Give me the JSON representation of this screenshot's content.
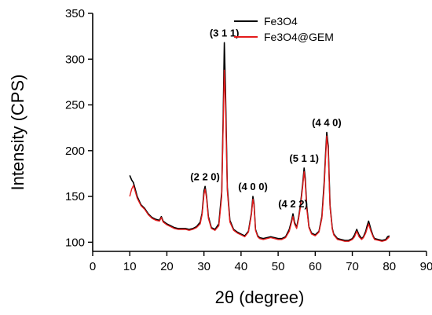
{
  "chart_data": {
    "type": "line",
    "title": "",
    "xlabel": "2θ (degree)",
    "ylabel": "Intensity (CPS)",
    "xlim": [
      0,
      90
    ],
    "ylim": [
      90,
      350
    ],
    "xticks": [
      0,
      10,
      20,
      30,
      40,
      50,
      60,
      70,
      80,
      90
    ],
    "yticks": [
      100,
      150,
      200,
      250,
      300,
      350
    ],
    "grid": false,
    "legend_position": "top-right",
    "series": [
      {
        "name": "Fe3O4",
        "color": "#000000",
        "x": [
          10,
          10.5,
          11,
          12,
          13,
          14,
          15,
          16,
          17,
          18,
          18.5,
          19,
          20,
          21,
          22,
          23,
          24,
          25,
          26,
          27,
          28,
          29,
          29.5,
          30,
          30.3,
          30.7,
          31.2,
          32,
          33,
          34,
          34.8,
          35.2,
          35.5,
          35.8,
          36.3,
          37,
          38,
          39,
          40,
          41,
          42,
          42.8,
          43.2,
          43.5,
          43.9,
          44.5,
          45,
          46,
          47,
          48,
          49,
          50,
          51,
          52,
          53,
          53.7,
          54,
          54.4,
          55,
          55.5,
          56,
          56.6,
          57,
          57.3,
          57.7,
          58.3,
          59,
          60,
          61,
          61.8,
          62.4,
          62.8,
          63.1,
          63.5,
          64,
          64.6,
          65,
          66,
          67,
          68,
          69,
          70,
          70.6,
          71.2,
          71.8,
          72.5,
          73,
          73.6,
          74,
          74.4,
          75,
          75.6,
          76,
          77,
          78,
          79,
          79.5,
          80
        ],
        "y": [
          173,
          168,
          165,
          150,
          141,
          137,
          131,
          127,
          125,
          124,
          128,
          123,
          120,
          118,
          116,
          115,
          115,
          115,
          114,
          115,
          117,
          122,
          132,
          156,
          161,
          150,
          128,
          116,
          114,
          120,
          155,
          240,
          318,
          265,
          160,
          124,
          114,
          111,
          109,
          107,
          112,
          132,
          150,
          142,
          114,
          107,
          105,
          104,
          105,
          106,
          105,
          104,
          104,
          106,
          114,
          125,
          131,
          122,
          116,
          127,
          140,
          163,
          181,
          170,
          140,
          117,
          110,
          108,
          112,
          128,
          165,
          198,
          220,
          205,
          140,
          115,
          109,
          104,
          103,
          102,
          102,
          104,
          108,
          114,
          108,
          104,
          106,
          112,
          118,
          123,
          114,
          107,
          104,
          103,
          102,
          103,
          106,
          107
        ]
      },
      {
        "name": "Fe3O4@GEM",
        "color": "#e41b1b",
        "x": [
          10,
          10.5,
          11,
          12,
          13,
          14,
          15,
          16,
          17,
          18,
          18.5,
          19,
          20,
          21,
          22,
          23,
          24,
          25,
          26,
          27,
          28,
          29,
          29.5,
          30,
          30.3,
          30.7,
          31.2,
          32,
          33,
          34,
          34.8,
          35.2,
          35.5,
          35.8,
          36.3,
          37,
          38,
          39,
          40,
          41,
          42,
          42.8,
          43.2,
          43.5,
          43.9,
          44.5,
          45,
          46,
          47,
          48,
          49,
          50,
          51,
          52,
          53,
          53.7,
          54,
          54.4,
          55,
          55.5,
          56,
          56.6,
          57,
          57.3,
          57.7,
          58.3,
          59,
          60,
          61,
          61.8,
          62.4,
          62.8,
          63.1,
          63.5,
          64,
          64.6,
          65,
          66,
          67,
          68,
          69,
          70,
          70.6,
          71.2,
          71.8,
          72.5,
          73,
          73.6,
          74,
          74.4,
          75,
          75.6,
          76,
          77,
          78,
          79,
          79.5,
          80
        ],
        "y": [
          150,
          158,
          162,
          148,
          140,
          136,
          130,
          126,
          124,
          123,
          127,
          122,
          119,
          117,
          115,
          114,
          114,
          114,
          113,
          114,
          116,
          120,
          130,
          152,
          158,
          148,
          126,
          115,
          113,
          118,
          150,
          230,
          288,
          250,
          156,
          122,
          113,
          110,
          108,
          106,
          111,
          130,
          147,
          140,
          113,
          106,
          104,
          103,
          104,
          105,
          104,
          103,
          103,
          105,
          112,
          123,
          128,
          120,
          115,
          125,
          138,
          160,
          177,
          166,
          137,
          116,
          109,
          107,
          111,
          126,
          160,
          194,
          216,
          200,
          138,
          114,
          108,
          103,
          102,
          101,
          101,
          103,
          106,
          112,
          106,
          103,
          105,
          110,
          115,
          120,
          112,
          106,
          103,
          102,
          101,
          102,
          104,
          106
        ]
      }
    ],
    "annotations": [
      {
        "text": "(2 2 0)",
        "x": 30.3,
        "y": 161
      },
      {
        "text": "(3 1 1)",
        "x": 35.5,
        "y": 318
      },
      {
        "text": "(4 0 0)",
        "x": 43.2,
        "y": 150
      },
      {
        "text": "(4 2 2)",
        "x": 54.0,
        "y": 131
      },
      {
        "text": "(5 1 1)",
        "x": 57.0,
        "y": 181
      },
      {
        "text": "(4 4 0)",
        "x": 63.1,
        "y": 220
      }
    ]
  }
}
